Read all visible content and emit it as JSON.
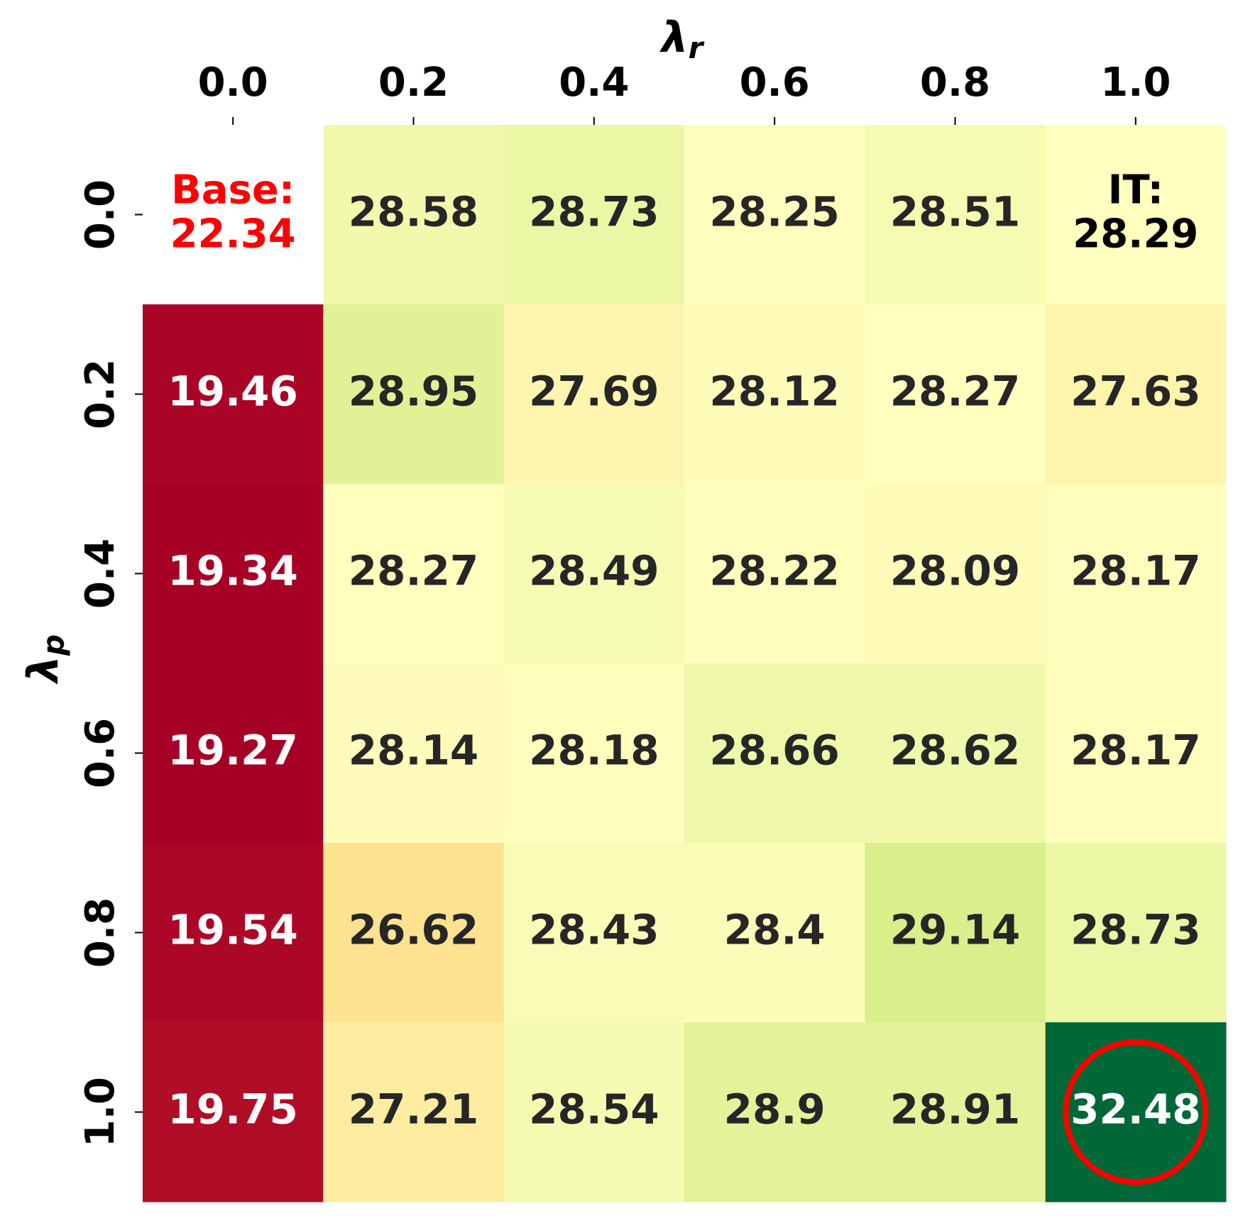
{
  "chart_data": {
    "type": "heatmap",
    "x_label": {
      "symbol": "λ",
      "subscript": "r"
    },
    "y_label": {
      "symbol": "λ",
      "subscript": "p"
    },
    "x_categories": [
      "0.0",
      "0.2",
      "0.4",
      "0.6",
      "0.8",
      "1.0"
    ],
    "y_categories": [
      "0.0",
      "0.2",
      "0.4",
      "0.6",
      "0.8",
      "1.0"
    ],
    "values": [
      [
        22.34,
        28.58,
        28.73,
        28.25,
        28.51,
        28.29
      ],
      [
        19.46,
        28.95,
        27.69,
        28.12,
        28.27,
        27.63
      ],
      [
        19.34,
        28.27,
        28.49,
        28.22,
        28.09,
        28.17
      ],
      [
        19.27,
        28.14,
        28.18,
        28.66,
        28.62,
        28.17
      ],
      [
        19.54,
        26.62,
        28.43,
        28.4,
        29.14,
        28.73
      ],
      [
        19.75,
        27.21,
        28.54,
        28.9,
        28.91,
        32.48
      ]
    ],
    "value_labels": [
      [
        "Base:\n22.34",
        null,
        null,
        null,
        null,
        "IT:\n28.29"
      ],
      [
        null,
        null,
        null,
        null,
        null,
        null
      ],
      [
        null,
        null,
        null,
        null,
        null,
        null
      ],
      [
        null,
        null,
        null,
        null,
        null,
        null
      ],
      [
        null,
        null,
        null,
        null,
        null,
        null
      ],
      [
        null,
        null,
        null,
        null,
        null,
        null
      ]
    ],
    "label_colors": [
      [
        "#ff0000",
        null,
        null,
        null,
        null,
        "#000000"
      ],
      [
        null,
        null,
        null,
        null,
        null,
        null
      ],
      [
        null,
        null,
        null,
        null,
        null,
        null
      ],
      [
        null,
        null,
        null,
        null,
        null,
        null
      ],
      [
        null,
        null,
        null,
        null,
        null,
        null
      ],
      [
        null,
        null,
        null,
        null,
        null,
        null
      ]
    ],
    "masked_cells": [
      [
        0,
        0
      ]
    ],
    "colormap": "RdYlGn",
    "vcenter": 28.29,
    "circle": {
      "row": 5,
      "col": 5,
      "color": "#ff0000"
    }
  }
}
